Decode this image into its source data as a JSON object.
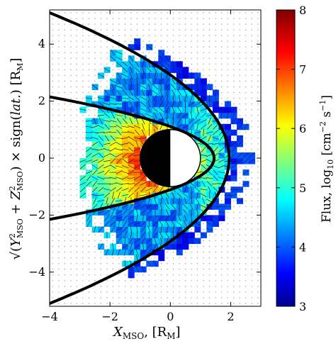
{
  "chart_data": {
    "type": "heatmap",
    "xlabel": "X_MSO, [R_M]",
    "ylabel": "√(Y²_MSO + Z²_MSO) × sign(lat.) [R_M]",
    "xlim": [
      -4,
      3
    ],
    "ylim": [
      -5.2,
      5.2
    ],
    "x_ticks": [
      "−4",
      "−2",
      "0",
      "2"
    ],
    "y_ticks": [
      "−4",
      "−2",
      "0",
      "2",
      "4"
    ],
    "x_tick_values": [
      -4,
      -2,
      0,
      2
    ],
    "y_tick_values": [
      -4,
      -2,
      0,
      2,
      4
    ],
    "colorbar": {
      "label": "Flux, log₁₀ [cm⁻² s⁻¹]",
      "range": [
        3,
        8
      ],
      "ticks": [
        "3",
        "4",
        "5",
        "6",
        "7",
        "8"
      ],
      "tick_values": [
        3,
        4,
        5,
        6,
        7,
        8
      ],
      "colormap": "jet"
    },
    "bin_size": 0.2,
    "planet": {
      "center": [
        0,
        0
      ],
      "radius": 1,
      "dayside": "white",
      "nightside": "black"
    },
    "boundaries": [
      {
        "name": "bow-shock",
        "subsolar_x": 1.95,
        "width_at_x_minus4": 5.1
      },
      {
        "name": "magnetopause",
        "subsolar_x": 1.45,
        "width_at_x_minus4": 2.15
      }
    ],
    "flux_model": {
      "description": "Log10 flux binned in XY-plane, highest near planet nightside and lower flanks",
      "peak": 7.6,
      "min": 3.2
    },
    "grid": true
  }
}
